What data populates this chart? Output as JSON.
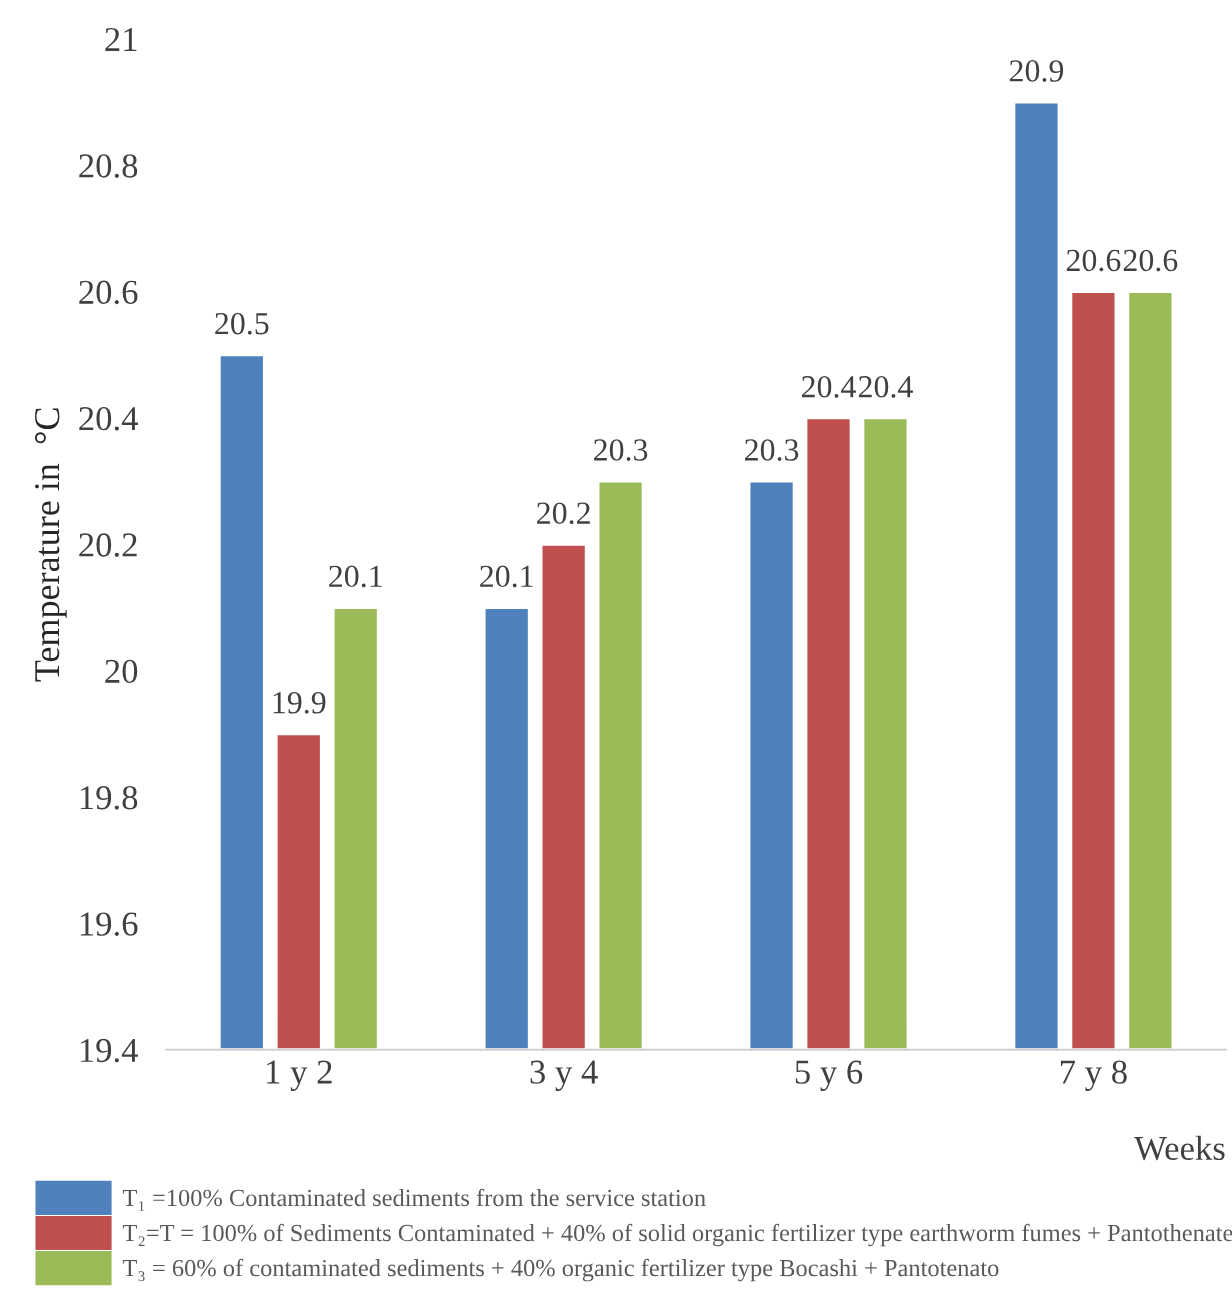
{
  "chart_data": {
    "type": "bar",
    "xlabel": "Weeks",
    "ylabel": "Temperature in  °C",
    "categories": [
      "1 y 2",
      "3 y 4",
      "5 y 6",
      "7 y 8"
    ],
    "series": [
      {
        "name": "T₁ =100% Contaminated sediments from the service station",
        "color": "#4f81bd",
        "values": [
          20.5,
          20.1,
          20.3,
          20.9
        ]
      },
      {
        "name": "T₂=T = 100% of Sediments Contaminated + 40% of solid organic fertilizer type earthworm fumes + Pantothenate",
        "color": "#c0504d",
        "values": [
          19.9,
          20.2,
          20.4,
          20.6
        ]
      },
      {
        "name": "T₃ = 60% of contaminated sediments + 40% organic fertilizer type Bocashi + Pantotenato",
        "color": "#9bbb59",
        "values": [
          20.1,
          20.3,
          20.4,
          20.6
        ]
      }
    ],
    "ylim": [
      19.4,
      21
    ],
    "yticks": [
      19.4,
      19.6,
      19.8,
      20,
      20.2,
      20.4,
      20.6,
      20.8,
      21
    ],
    "data_labels": true,
    "grid": false,
    "legend": "bottom"
  }
}
